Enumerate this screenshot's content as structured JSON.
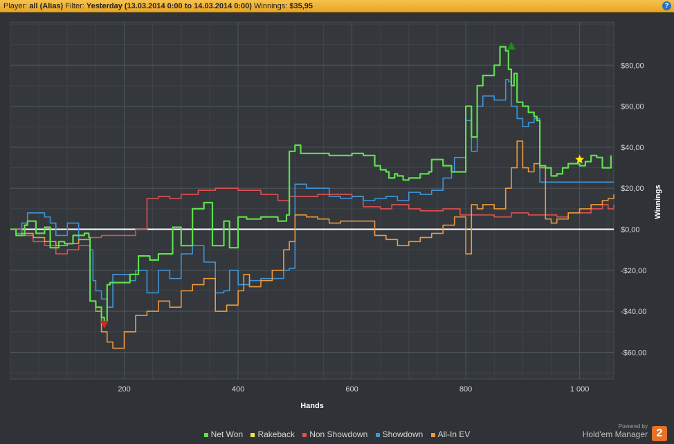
{
  "header": {
    "player_label": "Player:",
    "player_value": "all (Alias)",
    "filter_label": "Filter:",
    "filter_value": "Yesterday (13.03.2014 0:00 to 14.03.2014 0:00)",
    "winnings_label": "Winnings:",
    "winnings_value": "$35,95",
    "help_glyph": "?"
  },
  "legend": {
    "items": [
      {
        "label": "Net Won",
        "color": "#5fe04c"
      },
      {
        "label": "Rakeback",
        "color": "#f0e040"
      },
      {
        "label": "Non Showdown",
        "color": "#e05050"
      },
      {
        "label": "Showdown",
        "color": "#3f95d8"
      },
      {
        "label": "All-In EV",
        "color": "#f0993a"
      }
    ]
  },
  "branding": {
    "powered_by": "Powered by",
    "name": "Hold'em Manager",
    "logo_text": "2"
  },
  "chart_data": {
    "type": "line",
    "xlabel": "Hands",
    "ylabel": "Winnings",
    "xlim": [
      0,
      1060
    ],
    "ylim": [
      -73,
      101
    ],
    "x_ticks": [
      200,
      400,
      600,
      800,
      1000
    ],
    "x_tick_labels": [
      "200",
      "400",
      "600",
      "800",
      "1 000"
    ],
    "y_ticks": [
      80,
      60,
      40,
      20,
      0,
      -20,
      -40,
      -60
    ],
    "y_tick_labels": [
      "$80,00",
      "$60,00",
      "$40,00",
      "$20,00",
      "$0,00",
      "-$20,00",
      "-$40,00",
      "-$60,00"
    ],
    "grid": true,
    "legend_position": "bottom",
    "markers": [
      {
        "type": "max",
        "x": 880,
        "y": 89,
        "color": "#1d8a1d"
      },
      {
        "type": "min",
        "x": 165,
        "y": -46,
        "color": "#e02020"
      },
      {
        "type": "star",
        "x": 1000,
        "y": 34,
        "color": "#ffee00"
      }
    ],
    "series": [
      {
        "name": "Net Won",
        "color": "#5fe04c",
        "x": [
          0,
          10,
          25,
          30,
          45,
          60,
          70,
          85,
          95,
          110,
          130,
          138,
          140,
          150,
          160,
          165,
          170,
          175,
          195,
          210,
          225,
          245,
          260,
          275,
          285,
          300,
          320,
          340,
          355,
          375,
          385,
          400,
          415,
          440,
          470,
          485,
          490,
          500,
          510,
          530,
          560,
          600,
          620,
          640,
          650,
          660,
          665,
          675,
          680,
          690,
          700,
          720,
          735,
          740,
          760,
          775,
          790,
          800,
          810,
          820,
          830,
          850,
          860,
          870,
          875,
          880,
          885,
          890,
          900,
          910,
          920,
          925,
          930,
          940,
          950,
          960,
          970,
          980,
          990,
          1000,
          1010,
          1020,
          1030,
          1040,
          1050,
          1055
        ],
        "y": [
          0,
          -3,
          2,
          4,
          -2,
          1,
          -9,
          -6,
          -7,
          -3,
          -2,
          -4,
          -35,
          -38,
          -43,
          -45,
          -27,
          -26,
          -26,
          -22,
          -13,
          -15,
          -12,
          -12,
          1,
          -8,
          10,
          13,
          -8,
          4,
          -9,
          6,
          5,
          6,
          4,
          7,
          38,
          41,
          37,
          37,
          36,
          37,
          36,
          31,
          29,
          28,
          25,
          27,
          26,
          24,
          25,
          27,
          28,
          34,
          31,
          28,
          28,
          60,
          45,
          70,
          75,
          80,
          89,
          87,
          78,
          70,
          76,
          62,
          60,
          57,
          55,
          53,
          31,
          30,
          26,
          27,
          30,
          32,
          32,
          31,
          33,
          36,
          35,
          30,
          30,
          36
        ]
      },
      {
        "name": "Rakeback",
        "color": "#f0e040",
        "x": [],
        "y": []
      },
      {
        "name": "Non Showdown",
        "color": "#e05050",
        "x": [
          0,
          20,
          40,
          60,
          80,
          100,
          120,
          140,
          160,
          180,
          200,
          220,
          240,
          260,
          280,
          300,
          330,
          360,
          400,
          440,
          470,
          490,
          500,
          520,
          540,
          560,
          580,
          600,
          620,
          650,
          670,
          700,
          720,
          740,
          760,
          790,
          820,
          850,
          880,
          910,
          940,
          960,
          980,
          1000,
          1020,
          1040,
          1050,
          1060
        ],
        "y": [
          0,
          -3,
          -6,
          -8,
          -12,
          -10,
          -8,
          -4,
          -3,
          -3,
          -3,
          0,
          15,
          16,
          15,
          17,
          19,
          20,
          19,
          17,
          14,
          16,
          16,
          16,
          17,
          17,
          17,
          16,
          11,
          10,
          12,
          10,
          9,
          9,
          10,
          7,
          7,
          6,
          8,
          7,
          7,
          6,
          8,
          8,
          10,
          12,
          10,
          12
        ]
      },
      {
        "name": "Showdown",
        "color": "#3f95d8",
        "x": [
          0,
          10,
          20,
          30,
          50,
          60,
          70,
          80,
          100,
          120,
          140,
          145,
          150,
          160,
          170,
          175,
          180,
          200,
          210,
          220,
          240,
          260,
          280,
          300,
          320,
          340,
          360,
          375,
          385,
          400,
          420,
          440,
          460,
          480,
          490,
          500,
          520,
          540,
          560,
          580,
          600,
          620,
          640,
          660,
          680,
          700,
          720,
          740,
          760,
          775,
          780,
          800,
          810,
          820,
          830,
          850,
          870,
          875,
          880,
          890,
          900,
          910,
          920,
          930,
          960,
          1000,
          1040,
          1060
        ],
        "y": [
          0,
          -2,
          3,
          8,
          8,
          6,
          3,
          -3,
          3,
          -5,
          -10,
          -25,
          -30,
          -34,
          -38,
          -38,
          -22,
          -22,
          -25,
          -20,
          -31,
          -20,
          -24,
          -12,
          -8,
          -16,
          -31,
          -30,
          -20,
          -27,
          -25,
          -24,
          -24,
          -20,
          -19,
          22,
          20,
          20,
          16,
          15,
          16,
          14,
          15,
          16,
          14,
          18,
          17,
          19,
          25,
          28,
          35,
          53,
          38,
          60,
          65,
          63,
          73,
          72,
          60,
          54,
          50,
          52,
          54,
          23,
          23,
          23,
          23,
          23
        ]
      },
      {
        "name": "All-In EV",
        "color": "#f0993a",
        "x": [
          0,
          10,
          20,
          40,
          60,
          80,
          100,
          120,
          140,
          150,
          160,
          170,
          180,
          200,
          220,
          240,
          260,
          280,
          300,
          320,
          340,
          360,
          380,
          400,
          410,
          420,
          440,
          460,
          480,
          490,
          500,
          520,
          540,
          560,
          580,
          600,
          620,
          640,
          660,
          680,
          700,
          720,
          740,
          760,
          780,
          800,
          810,
          820,
          830,
          840,
          850,
          870,
          880,
          890,
          900,
          910,
          920,
          930,
          940,
          950,
          960,
          980,
          1000,
          1020,
          1040,
          1050,
          1060
        ],
        "y": [
          0,
          -3,
          -2,
          -4,
          -6,
          -8,
          -7,
          -5,
          -35,
          -40,
          -50,
          -55,
          -58,
          -50,
          -42,
          -40,
          -35,
          -38,
          -30,
          -27,
          -24,
          -40,
          -37,
          -30,
          -22,
          -28,
          -25,
          -20,
          -10,
          -6,
          7,
          6,
          5,
          3,
          4,
          4,
          4,
          -3,
          -5,
          -8,
          -6,
          -4,
          -2,
          2,
          6,
          -12,
          12,
          10,
          12,
          12,
          10,
          20,
          30,
          43,
          30,
          28,
          32,
          30,
          5,
          3,
          5,
          8,
          10,
          12,
          14,
          15,
          17
        ]
      }
    ]
  }
}
